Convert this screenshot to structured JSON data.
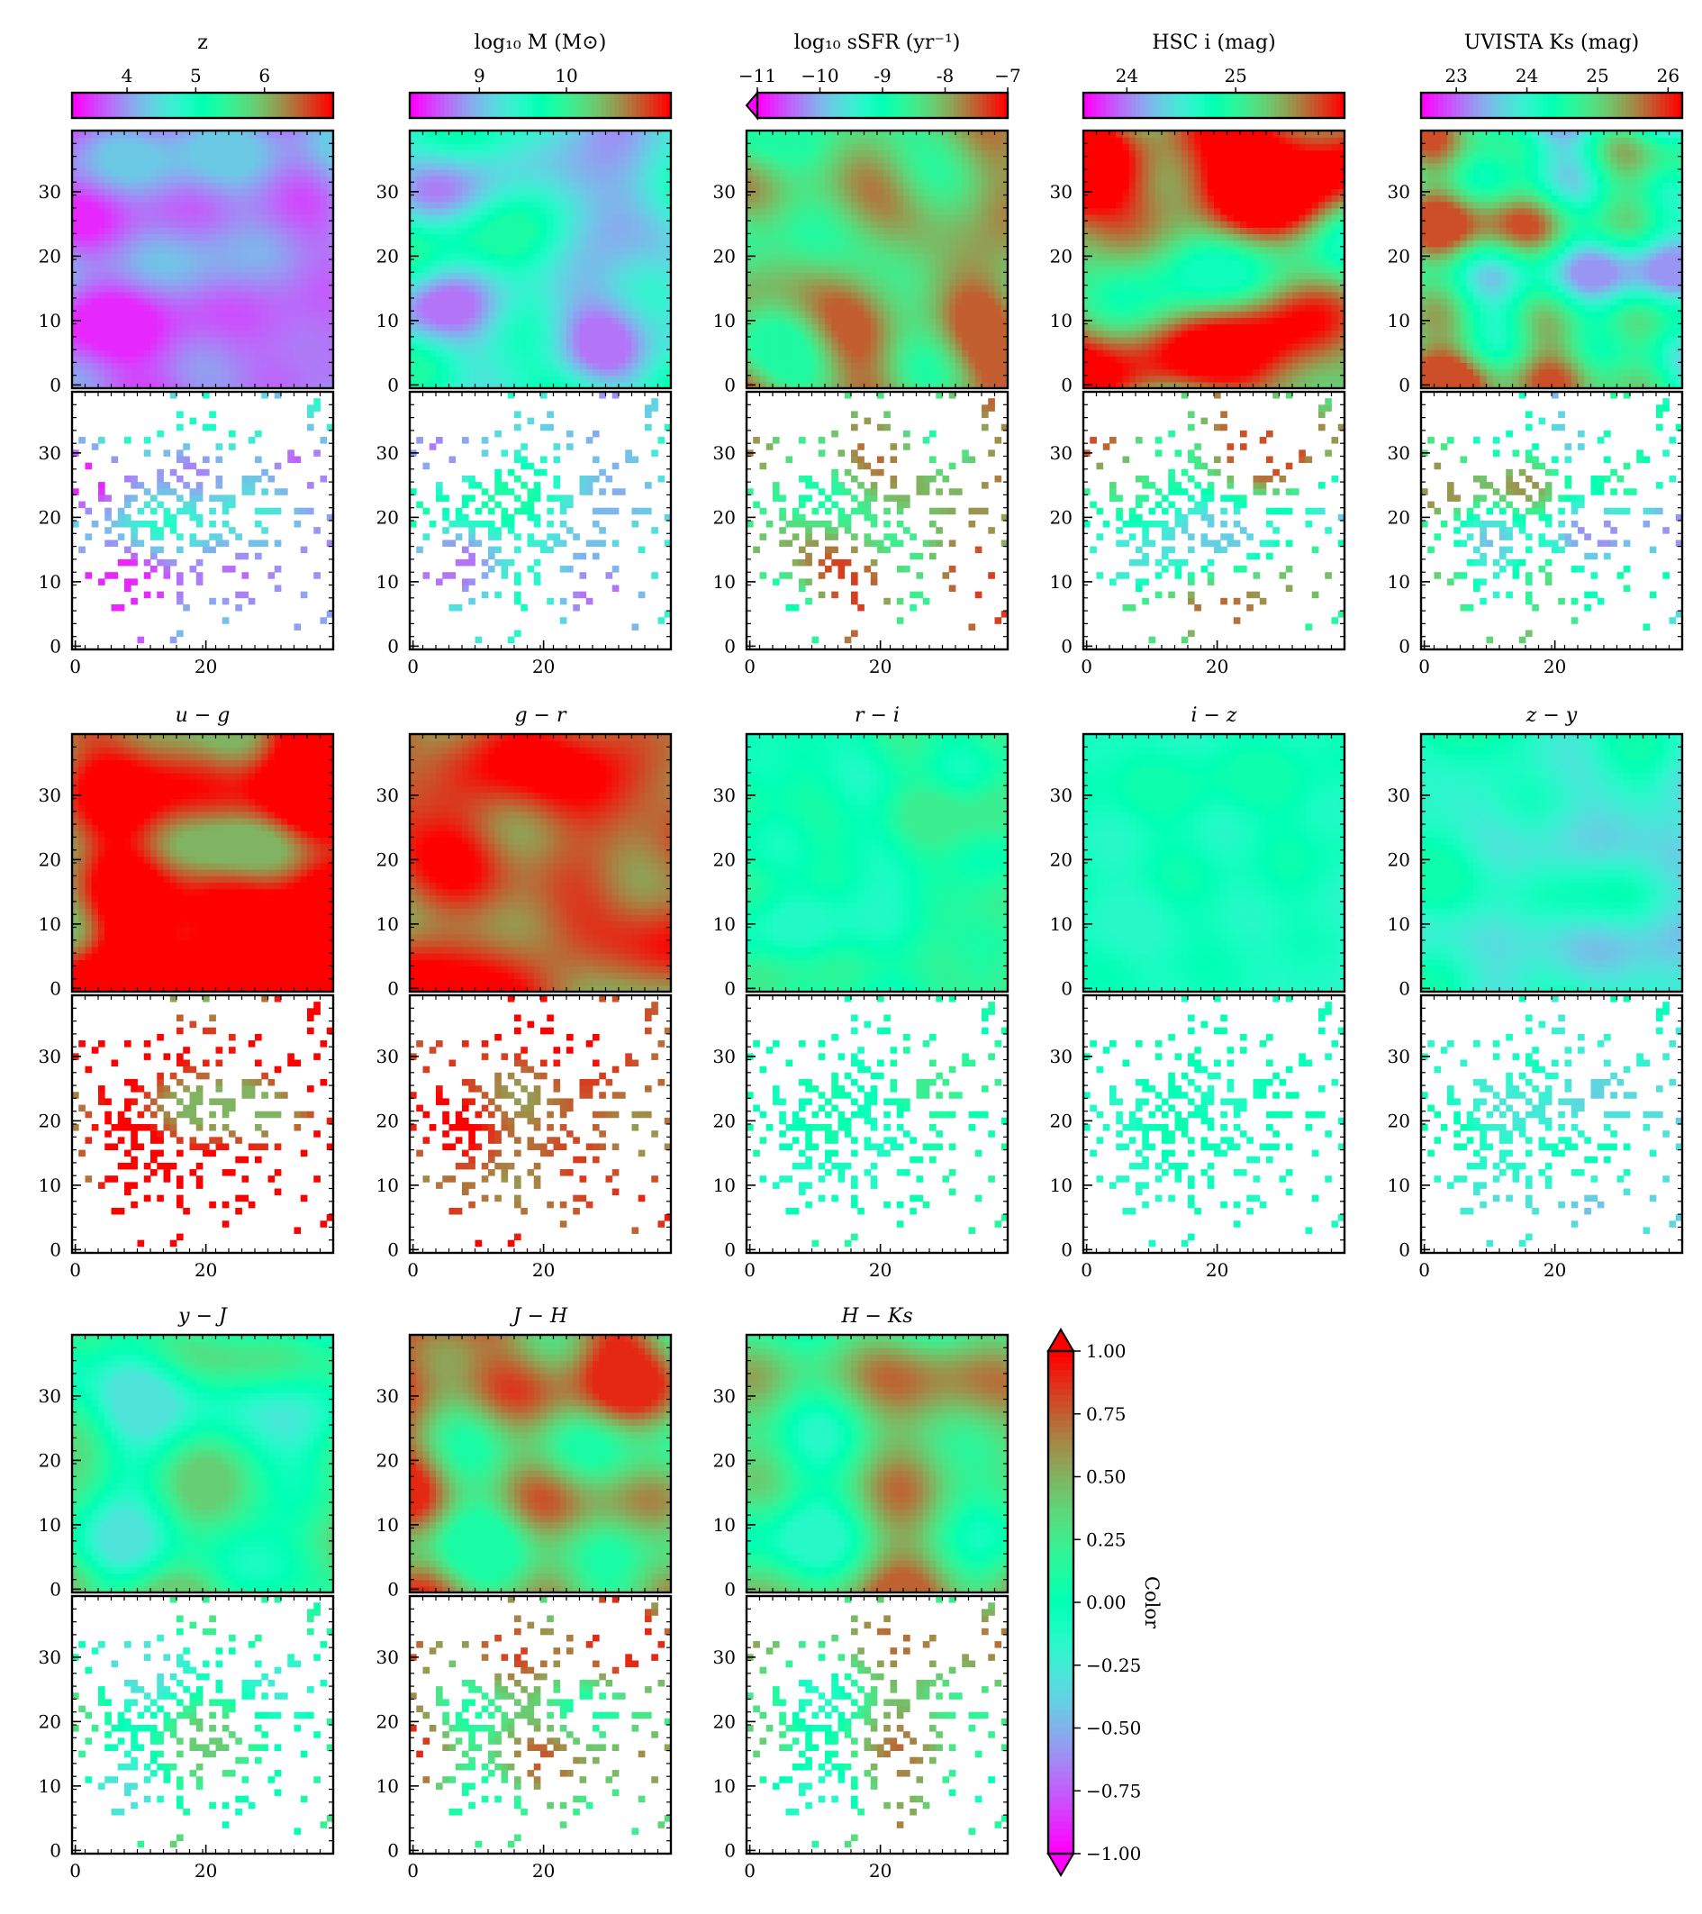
{
  "chart_data": {
    "type": "heatmap",
    "grid_size": 40,
    "colormap": "rainbow",
    "map_axis": {
      "x_ticks": [
        0,
        20
      ],
      "y_ticks": [
        0,
        10,
        20,
        30
      ],
      "range": [
        0,
        39
      ]
    },
    "rows": [
      {
        "panels": [
          {
            "id": "z",
            "title": "z",
            "cbar_ticks": [
              "4",
              "5",
              "6"
            ],
            "cbar_range": [
              3.2,
              7.0
            ],
            "cbar_extend": "none",
            "mean": 3.6,
            "amp": 0.55,
            "seed": 1,
            "pattern": 0
          },
          {
            "id": "mass",
            "title": "log₁₀ M (M⊙)",
            "cbar_ticks": [
              "9",
              "10"
            ],
            "cbar_range": [
              8.2,
              11.2
            ],
            "cbar_extend": "none",
            "mean": 9.4,
            "amp": 0.45,
            "seed": 2,
            "pattern": 1
          },
          {
            "id": "ssfr",
            "title": "log₁₀ sSFR (yr⁻¹)",
            "cbar_ticks": [
              "−11",
              "−10",
              "-9",
              "-8",
              "−7"
            ],
            "cbar_range": [
              -11,
              -7
            ],
            "cbar_extend": "min",
            "mean": -8.2,
            "amp": 0.5,
            "seed": 3,
            "pattern": 2
          },
          {
            "id": "hsc_i",
            "title": "HSC i (mag)",
            "cbar_ticks": [
              "24",
              "25"
            ],
            "cbar_range": [
              23.6,
              26.0
            ],
            "cbar_extend": "none",
            "mean": 25.3,
            "amp": 0.6,
            "seed": 4,
            "pattern": 3
          },
          {
            "id": "uvista_ks",
            "title": "UVISTA Ks (mag)",
            "cbar_ticks": [
              "23",
              "24",
              "25",
              "26"
            ],
            "cbar_range": [
              22.5,
              26.2
            ],
            "cbar_extend": "none",
            "mean": 24.7,
            "amp": 0.8,
            "seed": 5,
            "pattern": 3
          }
        ]
      },
      {
        "panels": [
          {
            "id": "u-g",
            "title": "u − g",
            "mean": 1.0,
            "amp": 0.5,
            "seed": 6,
            "pattern": 4
          },
          {
            "id": "g-r",
            "title": "g − r",
            "mean": 0.8,
            "amp": 0.3,
            "seed": 7,
            "pattern": 5
          },
          {
            "id": "r-i",
            "title": "r − i",
            "mean": 0.05,
            "amp": 0.18,
            "seed": 8,
            "pattern": 6
          },
          {
            "id": "i-z",
            "title": "i − z",
            "mean": -0.05,
            "amp": 0.1,
            "seed": 9,
            "pattern": 7
          },
          {
            "id": "z-y",
            "title": "z − y",
            "mean": -0.2,
            "amp": 0.25,
            "seed": 10,
            "pattern": 8
          }
        ]
      },
      {
        "panels": [
          {
            "id": "y-J",
            "title": "y − J",
            "mean": 0.05,
            "amp": 0.35,
            "seed": 11,
            "pattern": 9
          },
          {
            "id": "J-H",
            "title": "J − H",
            "mean": 0.5,
            "amp": 0.4,
            "seed": 12,
            "pattern": 10
          },
          {
            "id": "H-Ks",
            "title": "H − Ks",
            "mean": 0.3,
            "amp": 0.45,
            "seed": 13,
            "pattern": 11
          }
        ]
      }
    ],
    "color_bar": {
      "label": "Color",
      "ticks": [
        "1.00",
        "0.75",
        "0.50",
        "0.25",
        "0.00",
        "−0.25",
        "−0.50",
        "−0.75",
        "−1.00"
      ],
      "range": [
        -1.0,
        1.0
      ],
      "extend": "both"
    }
  }
}
